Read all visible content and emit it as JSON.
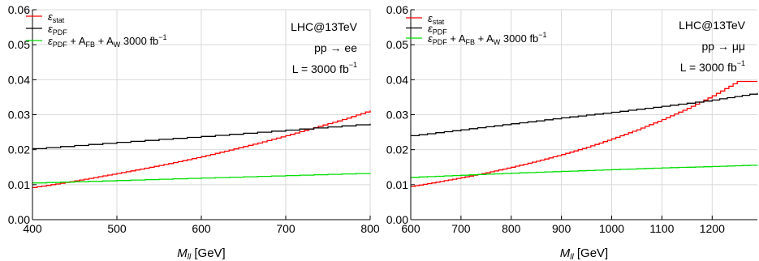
{
  "chart_data": [
    {
      "type": "line",
      "step": true,
      "xlabel_var": "M",
      "xlabel_sub": "ll",
      "xlabel_unit": "[GeV]",
      "xlim": [
        400,
        800
      ],
      "ylim": [
        0,
        0.06
      ],
      "xticks": [
        "400",
        "500",
        "600",
        "700",
        "800"
      ],
      "xtick_values": [
        400,
        500,
        600,
        700,
        800
      ],
      "yticks": [
        "0.00",
        "0.01",
        "0.02",
        "0.03",
        "0.04",
        "0.05",
        "0.06"
      ],
      "ytick_values": [
        0,
        0.01,
        0.02,
        0.03,
        0.04,
        0.05,
        0.06
      ],
      "grid": true,
      "legend_position": "top-left",
      "annotations": [
        "LHC@13TeV",
        "pp → ee",
        "L = 3000 fb"
      ],
      "annotation_superscript": "−1",
      "series": [
        {
          "name": "ε_stat",
          "legend_main": "ε",
          "legend_sub": "stat",
          "legend_rest": "",
          "legend_sup": "",
          "color": "#ff0000",
          "x": [
            400,
            433,
            467,
            500,
            533,
            567,
            600,
            633,
            667,
            700,
            733,
            767,
            800
          ],
          "y": [
            0.0092,
            0.0104,
            0.0118,
            0.0132,
            0.0147,
            0.0163,
            0.018,
            0.0199,
            0.0219,
            0.024,
            0.0263,
            0.0286,
            0.0312
          ]
        },
        {
          "name": "ε_PDF",
          "legend_main": "ε",
          "legend_sub": "PDF",
          "legend_rest": "",
          "legend_sup": "",
          "color": "#000000",
          "x": [
            400,
            500,
            600,
            700,
            800
          ],
          "y": [
            0.0203,
            0.0221,
            0.0238,
            0.0256,
            0.0274
          ]
        },
        {
          "name": "ε_PDF + A_FB + A_W 3000 fb^-1",
          "legend_main": "ε",
          "legend_sub": "PDF",
          "legend_rest": " + A_FB + A_W 3000 fb",
          "legend_sup": "−1",
          "color": "#00dd00",
          "x": [
            400,
            500,
            600,
            700,
            800
          ],
          "y": [
            0.0105,
            0.0112,
            0.0119,
            0.0126,
            0.0133
          ]
        }
      ]
    },
    {
      "type": "line",
      "step": true,
      "xlabel_var": "M",
      "xlabel_sub": "ll",
      "xlabel_unit": "[GeV]",
      "xlim": [
        600,
        1290
      ],
      "ylim": [
        0,
        0.06
      ],
      "xticks": [
        "600",
        "700",
        "800",
        "900",
        "1000",
        "1100",
        "1200"
      ],
      "xtick_values": [
        600,
        700,
        800,
        900,
        1000,
        1100,
        1200
      ],
      "yticks": [
        "0.00",
        "0.01",
        "0.02",
        "0.03",
        "0.04",
        "0.05",
        "0.06"
      ],
      "ytick_values": [
        0,
        0.01,
        0.02,
        0.03,
        0.04,
        0.05,
        0.06
      ],
      "grid": true,
      "legend_position": "top-left",
      "annotations": [
        "LHC@13TeV",
        "pp → μμ",
        "L = 3000 fb"
      ],
      "annotation_superscript": "−1",
      "series": [
        {
          "name": "ε_stat",
          "legend_main": "ε",
          "legend_sub": "stat",
          "legend_rest": "",
          "legend_sup": "",
          "color": "#ff0000",
          "x": [
            600,
            650,
            700,
            750,
            800,
            850,
            900,
            950,
            1000,
            1050,
            1100,
            1150,
            1200,
            1250,
            1290
          ],
          "y": [
            0.0095,
            0.0107,
            0.012,
            0.0134,
            0.015,
            0.0167,
            0.0186,
            0.0207,
            0.0231,
            0.0257,
            0.0286,
            0.0318,
            0.0354,
            0.0395,
            0.0395
          ]
        },
        {
          "name": "ε_PDF",
          "legend_main": "ε",
          "legend_sub": "PDF",
          "legend_rest": "",
          "legend_sup": "",
          "color": "#000000",
          "x": [
            600,
            700,
            800,
            900,
            1000,
            1100,
            1200,
            1290
          ],
          "y": [
            0.024,
            0.0257,
            0.0274,
            0.0291,
            0.0307,
            0.0324,
            0.0342,
            0.0362
          ]
        },
        {
          "name": "ε_PDF + A_FB + A_W 3000 fb^-1",
          "legend_main": "ε",
          "legend_sub": "PDF",
          "legend_rest": " + A_FB + A_W 3000 fb",
          "legend_sup": "−1",
          "color": "#00dd00",
          "x": [
            600,
            700,
            800,
            900,
            1000,
            1100,
            1200,
            1290
          ],
          "y": [
            0.0121,
            0.0127,
            0.0133,
            0.0138,
            0.0143,
            0.0148,
            0.0152,
            0.0156
          ]
        }
      ]
    }
  ]
}
